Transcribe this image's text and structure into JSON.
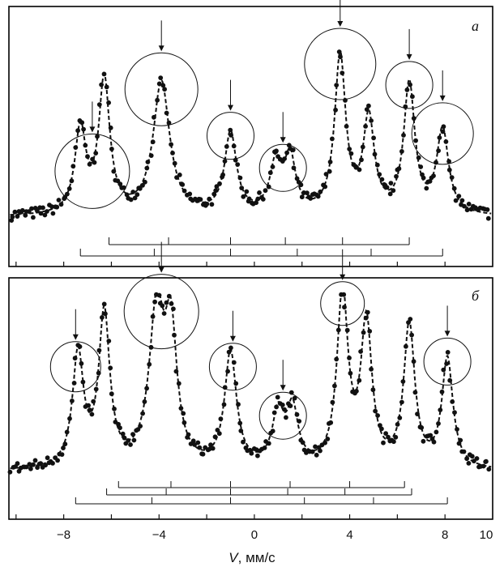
{
  "chart_data": [
    {
      "panel": "a",
      "type": "scatter",
      "xlim": [
        -10.3,
        10
      ],
      "ylim": [
        0,
        1
      ],
      "peaks": [
        {
          "center": -7.3,
          "amp": 0.52,
          "width": 0.28
        },
        {
          "center": -6.3,
          "amp": 0.82,
          "width": 0.28
        },
        {
          "center": -3.9,
          "amp": 0.82,
          "width": 0.42
        },
        {
          "center": -1.0,
          "amp": 0.5,
          "width": 0.3
        },
        {
          "center": 0.9,
          "amp": 0.3,
          "width": 0.3
        },
        {
          "center": 1.5,
          "amp": 0.33,
          "width": 0.28
        },
        {
          "center": 3.6,
          "amp": 0.97,
          "width": 0.28
        },
        {
          "center": 4.8,
          "amp": 0.58,
          "width": 0.28
        },
        {
          "center": 6.5,
          "amp": 0.8,
          "width": 0.28
        },
        {
          "center": 7.9,
          "amp": 0.52,
          "width": 0.3
        }
      ],
      "circles_at": [
        -6.8,
        -3.9,
        -1.0,
        1.2,
        3.6,
        6.5,
        7.9
      ],
      "arrows_at": [
        -6.8,
        -3.9,
        -1.0,
        1.2,
        3.6,
        6.5,
        7.9
      ],
      "stick_diagrams": [
        {
          "lines": [
            -6.1,
            -3.6,
            -1.0,
            1.3,
            3.7,
            6.5
          ]
        },
        {
          "lines": [
            -7.3,
            -4.2,
            -1.0,
            1.8,
            4.9,
            7.9
          ]
        }
      ]
    },
    {
      "panel": "б",
      "type": "scatter",
      "xlim": [
        -10.3,
        10
      ],
      "ylim": [
        0,
        1
      ],
      "peaks": [
        {
          "center": -7.4,
          "amp": 0.65,
          "width": 0.28
        },
        {
          "center": -6.3,
          "amp": 0.88,
          "width": 0.28
        },
        {
          "center": -4.1,
          "amp": 0.88,
          "width": 0.38
        },
        {
          "center": -3.5,
          "amp": 0.72,
          "width": 0.3
        },
        {
          "center": -1.0,
          "amp": 0.66,
          "width": 0.3
        },
        {
          "center": 1.0,
          "amp": 0.3,
          "width": 0.3
        },
        {
          "center": 1.6,
          "amp": 0.32,
          "width": 0.28
        },
        {
          "center": 3.7,
          "amp": 1.0,
          "width": 0.28
        },
        {
          "center": 4.7,
          "amp": 0.82,
          "width": 0.28
        },
        {
          "center": 6.5,
          "amp": 0.82,
          "width": 0.28
        },
        {
          "center": 8.1,
          "amp": 0.63,
          "width": 0.28
        }
      ],
      "circles_at": [
        -7.5,
        -3.9,
        -0.9,
        1.2,
        3.7,
        8.1
      ],
      "arrows_at": [
        -7.5,
        -3.9,
        -0.9,
        1.2,
        3.7,
        8.1
      ],
      "stick_diagrams": [
        {
          "lines": [
            -5.7,
            -3.5,
            -1.0,
            1.5,
            4.0,
            6.3
          ]
        },
        {
          "lines": [
            -6.2,
            -3.7,
            -1.0,
            1.4,
            3.8,
            6.6
          ]
        },
        {
          "lines": [
            -7.5,
            -4.3,
            -1.0,
            2.1,
            5.0,
            8.1
          ]
        }
      ]
    }
  ],
  "axis": {
    "ticks": [
      -8,
      -4,
      0,
      4,
      8,
      10
    ],
    "tick_labels": [
      "−8",
      "−4",
      "0",
      "4",
      "8",
      "10"
    ],
    "xlabel_var": "V",
    "xlabel_rest": ", мм/с"
  }
}
